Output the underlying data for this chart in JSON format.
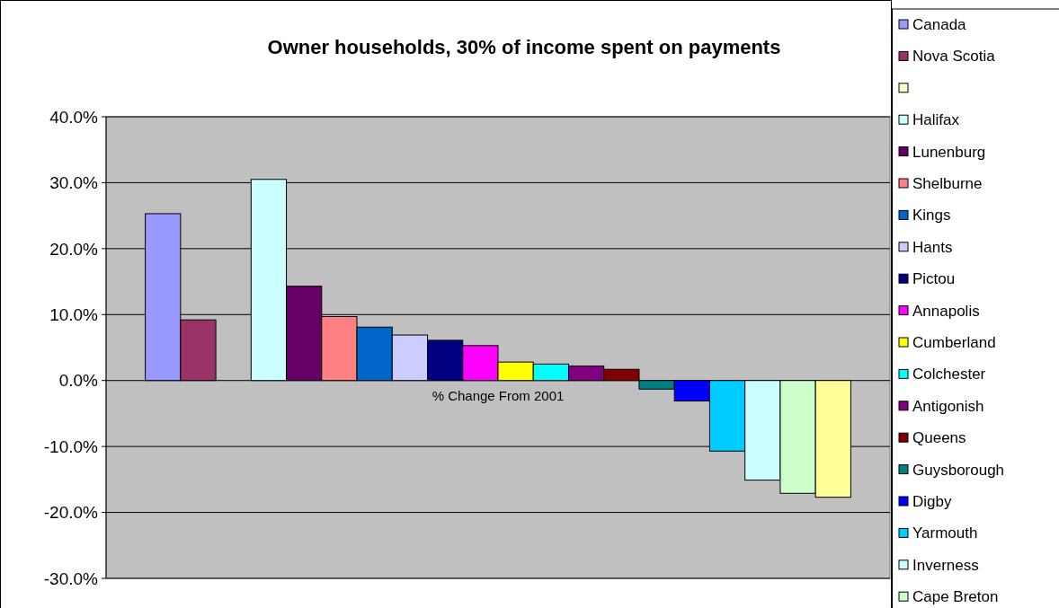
{
  "chart_data": {
    "type": "bar",
    "title": "Owner households, 30% of income spent on payments",
    "categories": [
      "% Change From 2001"
    ],
    "ylim": [
      -30,
      40
    ],
    "yticks": [
      {
        "value": -30,
        "label": "-30.0%"
      },
      {
        "value": -20,
        "label": "-20.0%"
      },
      {
        "value": -10,
        "label": "-10.0%"
      },
      {
        "value": 0,
        "label": "0.0%"
      },
      {
        "value": 10,
        "label": "10.0%"
      },
      {
        "value": 20,
        "label": "20.0%"
      },
      {
        "value": 30,
        "label": "30.0%"
      },
      {
        "value": 40,
        "label": "40.0%"
      }
    ],
    "grid": "y",
    "legend": "right",
    "series": [
      {
        "name": "Canada",
        "color": "#9999ff",
        "values": [
          25.3
        ]
      },
      {
        "name": "Nova Scotia",
        "color": "#993366",
        "values": [
          9.2
        ]
      },
      {
        "color": "#ffffcc",
        "values": [
          null
        ]
      },
      {
        "name": "Halifax",
        "color": "#ccffff",
        "values": [
          30.5
        ]
      },
      {
        "name": "Lunenburg",
        "color": "#660066",
        "values": [
          14.3
        ]
      },
      {
        "name": "Shelburne",
        "color": "#ff8080",
        "values": [
          9.7
        ]
      },
      {
        "name": "Kings",
        "color": "#0066cc",
        "values": [
          8.1
        ]
      },
      {
        "name": "Hants",
        "color": "#ccccff",
        "values": [
          6.9
        ]
      },
      {
        "name": "Pictou",
        "color": "#000080",
        "values": [
          6.1
        ]
      },
      {
        "name": "Annapolis",
        "color": "#ff00ff",
        "values": [
          5.3
        ]
      },
      {
        "name": "Cumberland",
        "color": "#ffff00",
        "values": [
          2.8
        ]
      },
      {
        "name": "Colchester",
        "color": "#00ffff",
        "values": [
          2.5
        ]
      },
      {
        "name": "Antigonish",
        "color": "#800080",
        "values": [
          2.2
        ]
      },
      {
        "name": "Queens",
        "color": "#800000",
        "values": [
          1.7
        ]
      },
      {
        "name": "Guysborough",
        "color": "#008080",
        "values": [
          -1.3
        ]
      },
      {
        "name": "Digby",
        "color": "#0000ff",
        "values": [
          -3.1
        ]
      },
      {
        "name": "Yarmouth",
        "color": "#00ccff",
        "values": [
          -10.7
        ]
      },
      {
        "name": "Inverness",
        "color": "#ccffff",
        "values": [
          -15.1
        ]
      },
      {
        "name": "Cape Breton",
        "color": "#ccffcc",
        "values": [
          -17.1
        ]
      },
      {
        "color": "#ffff99",
        "values": [
          -17.7
        ]
      }
    ]
  }
}
